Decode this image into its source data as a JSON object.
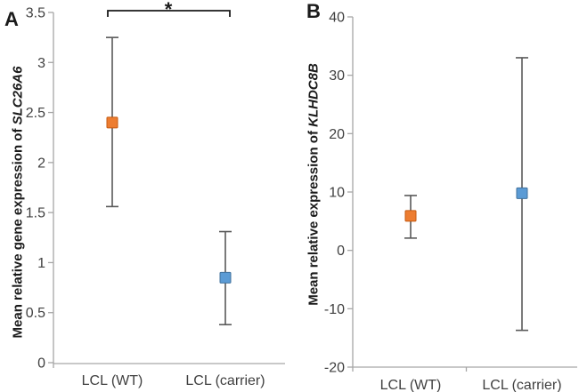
{
  "panels": [
    {
      "label": "A",
      "ylabel_prefix": "Mean relative gene expression of ",
      "ylabel_gene": "SLC26A6"
    },
    {
      "label": "B",
      "ylabel_prefix": "Mean relative expression of ",
      "ylabel_gene": "KLHDC8B"
    }
  ],
  "chart_data": [
    {
      "type": "scatter",
      "panel": "A",
      "title": "",
      "xlabel": "",
      "ylabel": "Mean relative gene expression of SLC26A6",
      "ylabel_gene_italic": "SLC26A6",
      "categories": [
        "LCL (WT)",
        "LCL (carrier)"
      ],
      "ylim": [
        0,
        3.5
      ],
      "grid": false,
      "legend": "none",
      "yticks": [
        {
          "v": 0,
          "label": "0"
        },
        {
          "v": 0.5,
          "label": "0.5"
        },
        {
          "v": 1,
          "label": "1"
        },
        {
          "v": 1.5,
          "label": "1.5"
        },
        {
          "v": 2,
          "label": "2"
        },
        {
          "v": 2.5,
          "label": "2.5"
        },
        {
          "v": 3,
          "label": "3"
        },
        {
          "v": 3.5,
          "label": "3.5"
        }
      ],
      "points": [
        {
          "category": "LCL (WT)",
          "mean": 2.4,
          "upper": 3.25,
          "lower": 1.56,
          "color": "#ED7D31",
          "border": "#C55A11"
        },
        {
          "category": "LCL (carrier)",
          "mean": 0.85,
          "upper": 1.31,
          "lower": 0.38,
          "color": "#5B9BD5",
          "border": "#41719C"
        }
      ],
      "significance": {
        "label": "*",
        "between": [
          "LCL (WT)",
          "LCL (carrier)"
        ]
      },
      "error_bar_color": "#595959",
      "axis_color": "#A6A6A6",
      "text_color": "#404040"
    },
    {
      "type": "scatter",
      "panel": "B",
      "title": "",
      "xlabel": "",
      "ylabel": "Mean relative expression of KLHDC8B",
      "ylabel_gene_italic": "KLHDC8B",
      "categories": [
        "LCL (WT)",
        "LCL (carrier)"
      ],
      "ylim": [
        -20,
        40
      ],
      "grid": false,
      "legend": "none",
      "yticks": [
        {
          "v": -20,
          "label": "-20"
        },
        {
          "v": -10,
          "label": "-10"
        },
        {
          "v": 0,
          "label": "0"
        },
        {
          "v": 10,
          "label": "10"
        },
        {
          "v": 20,
          "label": "20"
        },
        {
          "v": 30,
          "label": "30"
        },
        {
          "v": 40,
          "label": "40"
        }
      ],
      "points": [
        {
          "category": "LCL (WT)",
          "mean": 5.9,
          "upper": 9.4,
          "lower": 2.1,
          "color": "#ED7D31",
          "border": "#C55A11"
        },
        {
          "category": "LCL (carrier)",
          "mean": 9.8,
          "upper": 33,
          "lower": -13.7,
          "color": "#5B9BD5",
          "border": "#41719C"
        }
      ],
      "significance": null,
      "error_bar_color": "#595959",
      "axis_color": "#A6A6A6",
      "text_color": "#404040"
    }
  ]
}
